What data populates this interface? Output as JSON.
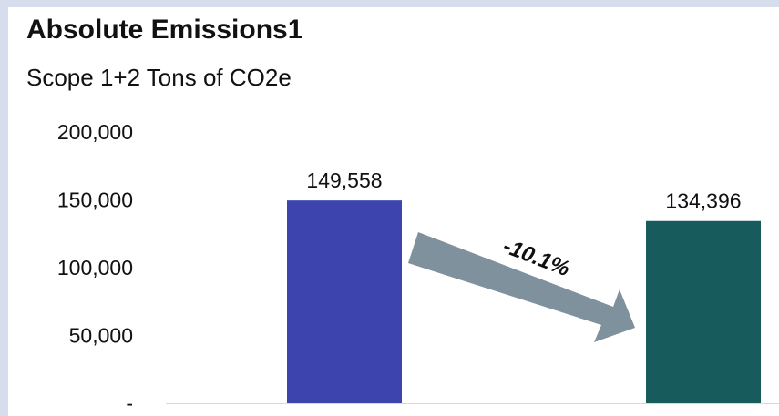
{
  "chart_data": {
    "type": "bar",
    "title": "Absolute Emissions1",
    "subtitle": "Scope 1+2 Tons of CO2e",
    "categories": [
      "",
      ""
    ],
    "values": [
      149558,
      134396
    ],
    "data_labels": [
      "149,558",
      "134,396"
    ],
    "colors": [
      "#3d44ae",
      "#175b5c"
    ],
    "ylim": [
      0,
      200000
    ],
    "yticks": [
      0,
      50000,
      100000,
      150000,
      200000
    ],
    "ytick_labels": [
      "-",
      "50,000",
      "100,000",
      "150,000",
      "200,000"
    ],
    "grid": false,
    "annotation": {
      "text": "-10.1%",
      "arrow_color": "#7e919c"
    }
  }
}
